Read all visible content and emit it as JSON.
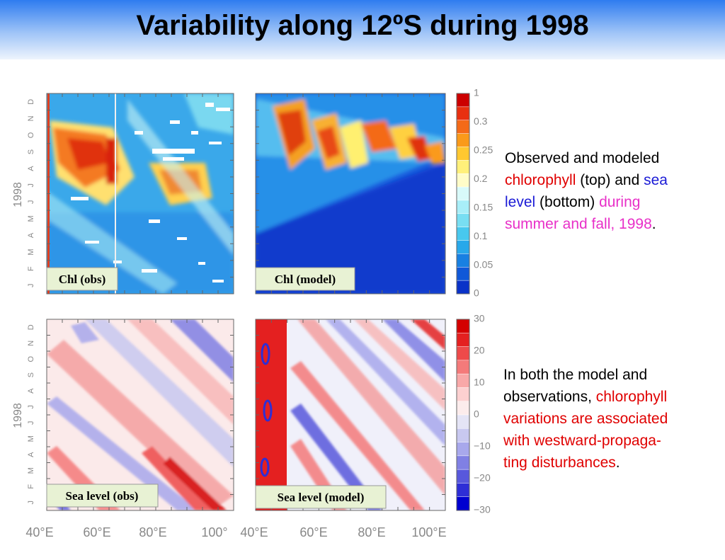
{
  "title": "Variability along 12ºS during 1998",
  "description_top": {
    "t1": "Observed and modeled",
    "t2": "chlorophyll",
    "t3": " (top) and ",
    "t4": "sea",
    "t5": "level",
    "t6": " (bottom) ",
    "t7": "during",
    "t8": "summer and fall, 1998",
    "t9": "."
  },
  "description_bottom": {
    "t1": "In both the model and",
    "t2": "observations, ",
    "t3": "chlorophyll",
    "t4": "variations are associated",
    "t5": "with westward-propaga-",
    "t6": "ting disturbances",
    "t7": "."
  },
  "chart_data": [
    {
      "type": "heatmap",
      "panel": "Chl (obs)",
      "x_tick_labels": [
        "40°E",
        "60°E",
        "80°E",
        "100°E"
      ],
      "y_tick_labels": [
        "J",
        "F",
        "M",
        "A",
        "M",
        "J",
        "J",
        "A",
        "S",
        "O",
        "N",
        "D"
      ],
      "ylabel": "1998",
      "colorbar": "chl"
    },
    {
      "type": "heatmap",
      "panel": "Chl (model)",
      "x_tick_labels": [
        "40°E",
        "60°E",
        "80°E",
        "100°E"
      ],
      "colorbar": "chl"
    },
    {
      "type": "heatmap",
      "panel": "Sea level (obs)",
      "x_tick_labels": [
        "40°E",
        "60°E",
        "80°E",
        "100°E"
      ],
      "y_tick_labels": [
        "J",
        "F",
        "M",
        "A",
        "M",
        "J",
        "J",
        "A",
        "S",
        "O",
        "N",
        "D"
      ],
      "ylabel": "1998",
      "colorbar": "ssh"
    },
    {
      "type": "heatmap",
      "panel": "Sea level (model)",
      "x_tick_labels": [
        "40°E",
        "60°E",
        "80°E",
        "100°E"
      ],
      "colorbar": "ssh"
    }
  ],
  "colorbars": {
    "chl": {
      "labels": [
        "1",
        "0.3",
        "0.25",
        "0.2",
        "0.15",
        "0.1",
        "0.05",
        "0"
      ],
      "colors": [
        "#cc0000",
        "#e83010",
        "#f46a18",
        "#fa9a1a",
        "#ffc830",
        "#fff07a",
        "#fffcc8",
        "#d8fafa",
        "#a8eef8",
        "#78def2",
        "#48c8ee",
        "#28a8ea",
        "#1880e2",
        "#1058d8",
        "#0a32c8"
      ]
    },
    "ssh": {
      "labels": [
        "30",
        "20",
        "10",
        "0",
        "−10",
        "−20",
        "−30"
      ],
      "colors": [
        "#d40000",
        "#e42020",
        "#ee4a4a",
        "#f47a7a",
        "#f8a8a8",
        "#fcd0d0",
        "#fcecec",
        "#e4e4f6",
        "#c8c8f0",
        "#a8a8ec",
        "#8080e4",
        "#5858dc",
        "#2e2ed6",
        "#0000d0"
      ]
    }
  },
  "bottom_axis_labels": [
    "40°E",
    "60°E",
    "80°E",
    "100°",
    "40°E",
    "60°E",
    "80°E",
    "100°E"
  ],
  "colors": {
    "header_top": "#2f7cf0",
    "red_text": "#e00000",
    "blue_text": "#1a1ad6",
    "magenta_text": "#e830c8"
  }
}
